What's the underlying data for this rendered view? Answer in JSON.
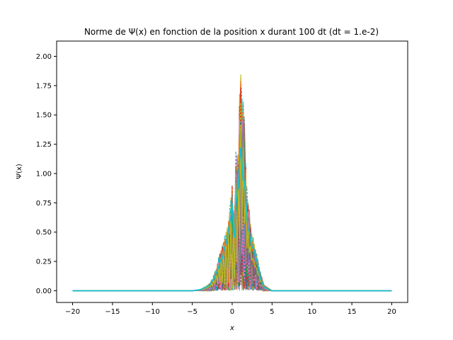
{
  "chart_data": {
    "type": "line",
    "title": "Norme de Ψ(x) en fonction de la position x durant 100 dt (dt = 1.e-2)",
    "xlabel": "x",
    "ylabel": "Ψ(x)",
    "xlim": [
      -22,
      22
    ],
    "ylim": [
      -0.1,
      2.13
    ],
    "x_ticks": [
      -20,
      -15,
      -10,
      -5,
      0,
      5,
      10,
      15,
      20
    ],
    "x_tick_labels": [
      "−20",
      "−15",
      "−10",
      "−5",
      "0",
      "5",
      "10",
      "15",
      "20"
    ],
    "y_ticks": [
      0,
      0.25,
      0.5,
      0.75,
      1.0,
      1.25,
      1.5,
      1.75,
      2.0
    ],
    "y_tick_labels": [
      "0.00",
      "0.25",
      "0.50",
      "0.75",
      "1.00",
      "1.25",
      "1.50",
      "1.75",
      "2.00"
    ],
    "grid": false,
    "legend": "none",
    "series_count": 100,
    "series_colors": [
      "#1f77b4",
      "#ff7f0e",
      "#2ca02c",
      "#d62728",
      "#9467bd",
      "#8c564b",
      "#e377c2",
      "#7f7f7f",
      "#bcbd22",
      "#17becf"
    ],
    "x": [
      -20,
      -5,
      -4,
      -3,
      -2.5,
      -2,
      -1.5,
      -1,
      -0.5,
      0,
      0.25,
      0.5,
      0.75,
      1,
      1.25,
      1.5,
      1.75,
      2,
      2.5,
      3,
      3.5,
      4,
      5,
      20
    ],
    "envelope_max": [
      0,
      0,
      0.01,
      0.05,
      0.1,
      0.2,
      0.35,
      0.45,
      0.6,
      0.95,
      0.6,
      1.3,
      1.2,
      2.03,
      1.7,
      1.72,
      0.95,
      0.8,
      0.5,
      0.35,
      0.18,
      0.05,
      0,
      0
    ],
    "final_series": [
      0,
      0,
      0.01,
      0.04,
      0.08,
      0.15,
      0.25,
      0.35,
      0.5,
      0.75,
      0.4,
      0.8,
      0.9,
      1.28,
      1.1,
      1.0,
      0.75,
      0.55,
      0.4,
      0.3,
      0.12,
      0.03,
      0,
      0
    ]
  }
}
